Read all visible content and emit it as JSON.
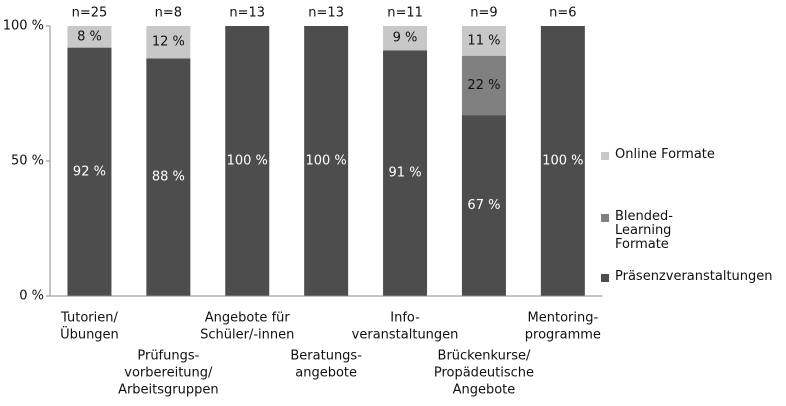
{
  "chart_data": {
    "type": "stacked_bar",
    "categories": [
      [
        "Tutorien/",
        "Übungen"
      ],
      [
        "Prüfungs-",
        "vorbereitung/",
        "Arbeitsgruppen"
      ],
      [
        "Angebote für",
        "Schüler/-innen"
      ],
      [
        "Beratungs-",
        "angebote"
      ],
      [
        "Info-",
        "veranstaltungen"
      ],
      [
        "Brückenkurse/",
        "Propädeutische",
        "Angebote"
      ],
      [
        "Mentoring-",
        "programme"
      ]
    ],
    "annotations": [
      "n=25",
      "n=8",
      "n=13",
      "n=13",
      "n=11",
      "n=9",
      "n=6"
    ],
    "series": [
      {
        "name": "Präsenzveranstaltungen",
        "color": "#4d4d4d",
        "label_color": "#ffffff",
        "values": [
          92,
          88,
          100,
          100,
          91,
          67,
          100
        ],
        "value_labels": [
          "92 %",
          "88 %",
          "100 %",
          "100 %",
          "91 %",
          "67 %",
          "100 %"
        ]
      },
      {
        "name": "Blended-Learning Formate",
        "color": "#808080",
        "label_color": "#111111",
        "values": [
          0,
          0,
          0,
          0,
          0,
          22,
          0
        ],
        "value_labels": [
          null,
          null,
          null,
          null,
          null,
          "22 %",
          null
        ]
      },
      {
        "name": "Online Formate",
        "color": "#c8c8c8",
        "label_color": "#111111",
        "values": [
          8,
          12,
          0,
          0,
          9,
          11,
          0
        ],
        "value_labels": [
          "8 %",
          "12 %",
          null,
          null,
          "9 %",
          "11 %",
          null
        ]
      }
    ],
    "ylim": [
      0,
      100
    ],
    "yticks": [
      {
        "value": 0,
        "label": "0 %"
      },
      {
        "value": 50,
        "label": "50 %"
      },
      {
        "value": 100,
        "label": "100 %"
      }
    ],
    "legend": "right"
  }
}
